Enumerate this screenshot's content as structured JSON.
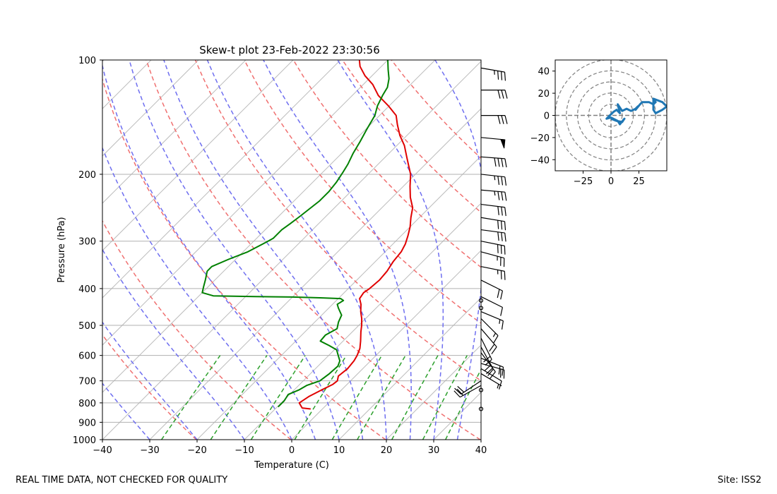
{
  "chart_data": [
    {
      "type": "line",
      "title": "Skew-t plot 23-Feb-2022 23:30:56",
      "xlabel": "Temperature (C)",
      "ylabel": "Pressure (hPa)",
      "xlim": [
        -40,
        40
      ],
      "ylim": [
        1000,
        100
      ],
      "y_scale": "log",
      "skew": "45 degrees",
      "x_ticks": [
        -40,
        -30,
        -20,
        -10,
        0,
        10,
        20,
        30,
        40
      ],
      "y_ticks": [
        1000,
        900,
        800,
        700,
        600,
        500,
        400,
        300,
        200,
        100
      ],
      "grid": true,
      "series": [
        {
          "color": "#e00000",
          "points": [
            [
              830,
              -2.5
            ],
            [
              825,
              -4.5
            ],
            [
              800,
              -6.2
            ],
            [
              770,
              -5.5
            ],
            [
              740,
              -4.2
            ],
            [
              715,
              -3.0
            ],
            [
              700,
              -2.8
            ],
            [
              680,
              -3.6
            ],
            [
              650,
              -3.2
            ],
            [
              620,
              -3.5
            ],
            [
              600,
              -4.0
            ],
            [
              575,
              -4.9
            ],
            [
              550,
              -6.3
            ],
            [
              520,
              -8.2
            ],
            [
              500,
              -9.4
            ],
            [
              480,
              -10.8
            ],
            [
              460,
              -12.5
            ],
            [
              440,
              -14.0
            ],
            [
              425,
              -15.5
            ],
            [
              410,
              -15.9
            ],
            [
              400,
              -15.5
            ],
            [
              380,
              -15.2
            ],
            [
              360,
              -15.5
            ],
            [
              340,
              -16.2
            ],
            [
              320,
              -16.6
            ],
            [
              305,
              -17.4
            ],
            [
              290,
              -18.6
            ],
            [
              275,
              -20.0
            ],
            [
              260,
              -21.8
            ],
            [
              245,
              -23.5
            ],
            [
              230,
              -26.2
            ],
            [
              215,
              -28.6
            ],
            [
              200,
              -31.0
            ],
            [
              190,
              -33.2
            ],
            [
              180,
              -35.5
            ],
            [
              168,
              -38.4
            ],
            [
              158,
              -41.5
            ],
            [
              148,
              -44.3
            ],
            [
              140,
              -46.5
            ],
            [
              132,
              -50.2
            ],
            [
              124,
              -54.5
            ],
            [
              116,
              -58.0
            ],
            [
              110,
              -61.5
            ],
            [
              104,
              -64.5
            ],
            [
              100,
              -66.0
            ]
          ]
        },
        {
          "color": "#008000",
          "points": [
            [
              820,
              -9.8
            ],
            [
              790,
              -9.8
            ],
            [
              760,
              -10.3
            ],
            [
              740,
              -9.0
            ],
            [
              720,
              -8.3
            ],
            [
              700,
              -6.5
            ],
            [
              670,
              -6.0
            ],
            [
              640,
              -5.8
            ],
            [
              620,
              -6.5
            ],
            [
              600,
              -8.0
            ],
            [
              580,
              -9.5
            ],
            [
              565,
              -12.0
            ],
            [
              550,
              -14.8
            ],
            [
              530,
              -15.0
            ],
            [
              510,
              -13.9
            ],
            [
              490,
              -15.0
            ],
            [
              470,
              -15.8
            ],
            [
              450,
              -18.0
            ],
            [
              440,
              -19.0
            ],
            [
              430,
              -18.5
            ],
            [
              425,
              -19.5
            ],
            [
              423,
              -24.0
            ],
            [
              421,
              -30.0
            ],
            [
              420,
              -38.0
            ],
            [
              418,
              -47.0
            ],
            [
              410,
              -50.0
            ],
            [
              395,
              -51.0
            ],
            [
              380,
              -52.0
            ],
            [
              360,
              -53.5
            ],
            [
              350,
              -53.5
            ],
            [
              335,
              -51.5
            ],
            [
              320,
              -49.0
            ],
            [
              305,
              -47.5
            ],
            [
              295,
              -46.5
            ],
            [
              280,
              -46.5
            ],
            [
              270,
              -46.0
            ],
            [
              258,
              -45.5
            ],
            [
              245,
              -45.0
            ],
            [
              235,
              -44.6
            ],
            [
              222,
              -44.6
            ],
            [
              210,
              -45.0
            ],
            [
              198,
              -45.7
            ],
            [
              188,
              -46.4
            ],
            [
              176,
              -47.6
            ],
            [
              164,
              -48.6
            ],
            [
              152,
              -49.8
            ],
            [
              140,
              -51.0
            ],
            [
              132,
              -52.5
            ],
            [
              124,
              -53.6
            ],
            [
              118,
              -54.3
            ],
            [
              112,
              -55.8
            ],
            [
              106,
              -57.9
            ],
            [
              100,
              -60.0
            ]
          ]
        }
      ],
      "dry_adiabats_theta_K": [
        253,
        273,
        293,
        313,
        333,
        353,
        373,
        393,
        413
      ],
      "moist_adiabats_start_C": [
        -30,
        -20,
        -10,
        0,
        5,
        10,
        15,
        20,
        25,
        30,
        35
      ],
      "mixing_ratio_lines_gkg": [
        0.4,
        1,
        2,
        4,
        7,
        10,
        16,
        24,
        32
      ],
      "wind_barbs": [
        {
          "p": 830,
          "u": 0,
          "v": 0
        },
        {
          "p": 740,
          "u": 0,
          "v": 0
        },
        {
          "p": 720,
          "u": 18,
          "v": 10
        },
        {
          "p": 700,
          "u": 15,
          "v": 10
        },
        {
          "p": 670,
          "u": -5,
          "v": 3
        },
        {
          "p": 650,
          "u": -10,
          "v": 6
        },
        {
          "p": 630,
          "u": -18,
          "v": 5
        },
        {
          "p": 610,
          "u": -20,
          "v": 8
        },
        {
          "p": 590,
          "u": -12,
          "v": 16
        },
        {
          "p": 570,
          "u": -10,
          "v": 18
        },
        {
          "p": 540,
          "u": -8,
          "v": 16
        },
        {
          "p": 510,
          "u": -12,
          "v": 14
        },
        {
          "p": 480,
          "u": -10,
          "v": 10
        },
        {
          "p": 460,
          "u": -12,
          "v": 5
        },
        {
          "p": 450,
          "u": 0,
          "v": 0
        },
        {
          "p": 430,
          "u": 0,
          "v": 0
        },
        {
          "p": 420,
          "u": -8,
          "v": 4
        },
        {
          "p": 380,
          "u": -20,
          "v": 10
        },
        {
          "p": 350,
          "u": -25,
          "v": 5
        },
        {
          "p": 320,
          "u": -22,
          "v": 6
        },
        {
          "p": 300,
          "u": -30,
          "v": 6
        },
        {
          "p": 280,
          "u": -30,
          "v": 4
        },
        {
          "p": 260,
          "u": -30,
          "v": 5
        },
        {
          "p": 240,
          "u": -32,
          "v": 4
        },
        {
          "p": 220,
          "u": -34,
          "v": 3
        },
        {
          "p": 200,
          "u": -36,
          "v": 4
        },
        {
          "p": 180,
          "u": -40,
          "v": 3
        },
        {
          "p": 160,
          "u": -52,
          "v": 5
        },
        {
          "p": 140,
          "u": -30,
          "v": 0
        },
        {
          "p": 120,
          "u": -28,
          "v": 0
        },
        {
          "p": 105,
          "u": -35,
          "v": 6
        }
      ]
    },
    {
      "type": "line",
      "title": "",
      "xlabel": "",
      "ylabel": "",
      "xlim": [
        -50,
        50
      ],
      "ylim": [
        -50,
        50
      ],
      "x_ticks": [
        -25,
        0,
        25
      ],
      "y_ticks": [
        -40,
        -20,
        0,
        20,
        40
      ],
      "grid": "polar rings",
      "ring_radii": [
        10,
        20,
        30,
        40,
        50
      ],
      "series": [
        {
          "color": "#1f77b4",
          "points": [
            [
              0,
              -3
            ],
            [
              5,
              -5
            ],
            [
              10,
              -6
            ],
            [
              12,
              -3
            ],
            [
              8,
              -8
            ],
            [
              6,
              -5
            ],
            [
              0,
              -2
            ],
            [
              -4,
              -3
            ],
            [
              2,
              3
            ],
            [
              5,
              5
            ],
            [
              8,
              2
            ],
            [
              6,
              10
            ],
            [
              10,
              4
            ],
            [
              14,
              6
            ],
            [
              18,
              4
            ],
            [
              22,
              6
            ],
            [
              24,
              8
            ],
            [
              22,
              5
            ],
            [
              26,
              10
            ],
            [
              28,
              12
            ],
            [
              34,
              12
            ],
            [
              38,
              10
            ],
            [
              40,
              12
            ],
            [
              38,
              15
            ],
            [
              38,
              5
            ],
            [
              40,
              2
            ],
            [
              46,
              5
            ],
            [
              50,
              8
            ],
            [
              46,
              12
            ],
            [
              38,
              15
            ]
          ]
        }
      ]
    }
  ],
  "footer": {
    "left": "REAL TIME DATA, NOT CHECKED FOR QUALITY",
    "right": "Site: ISS2"
  }
}
